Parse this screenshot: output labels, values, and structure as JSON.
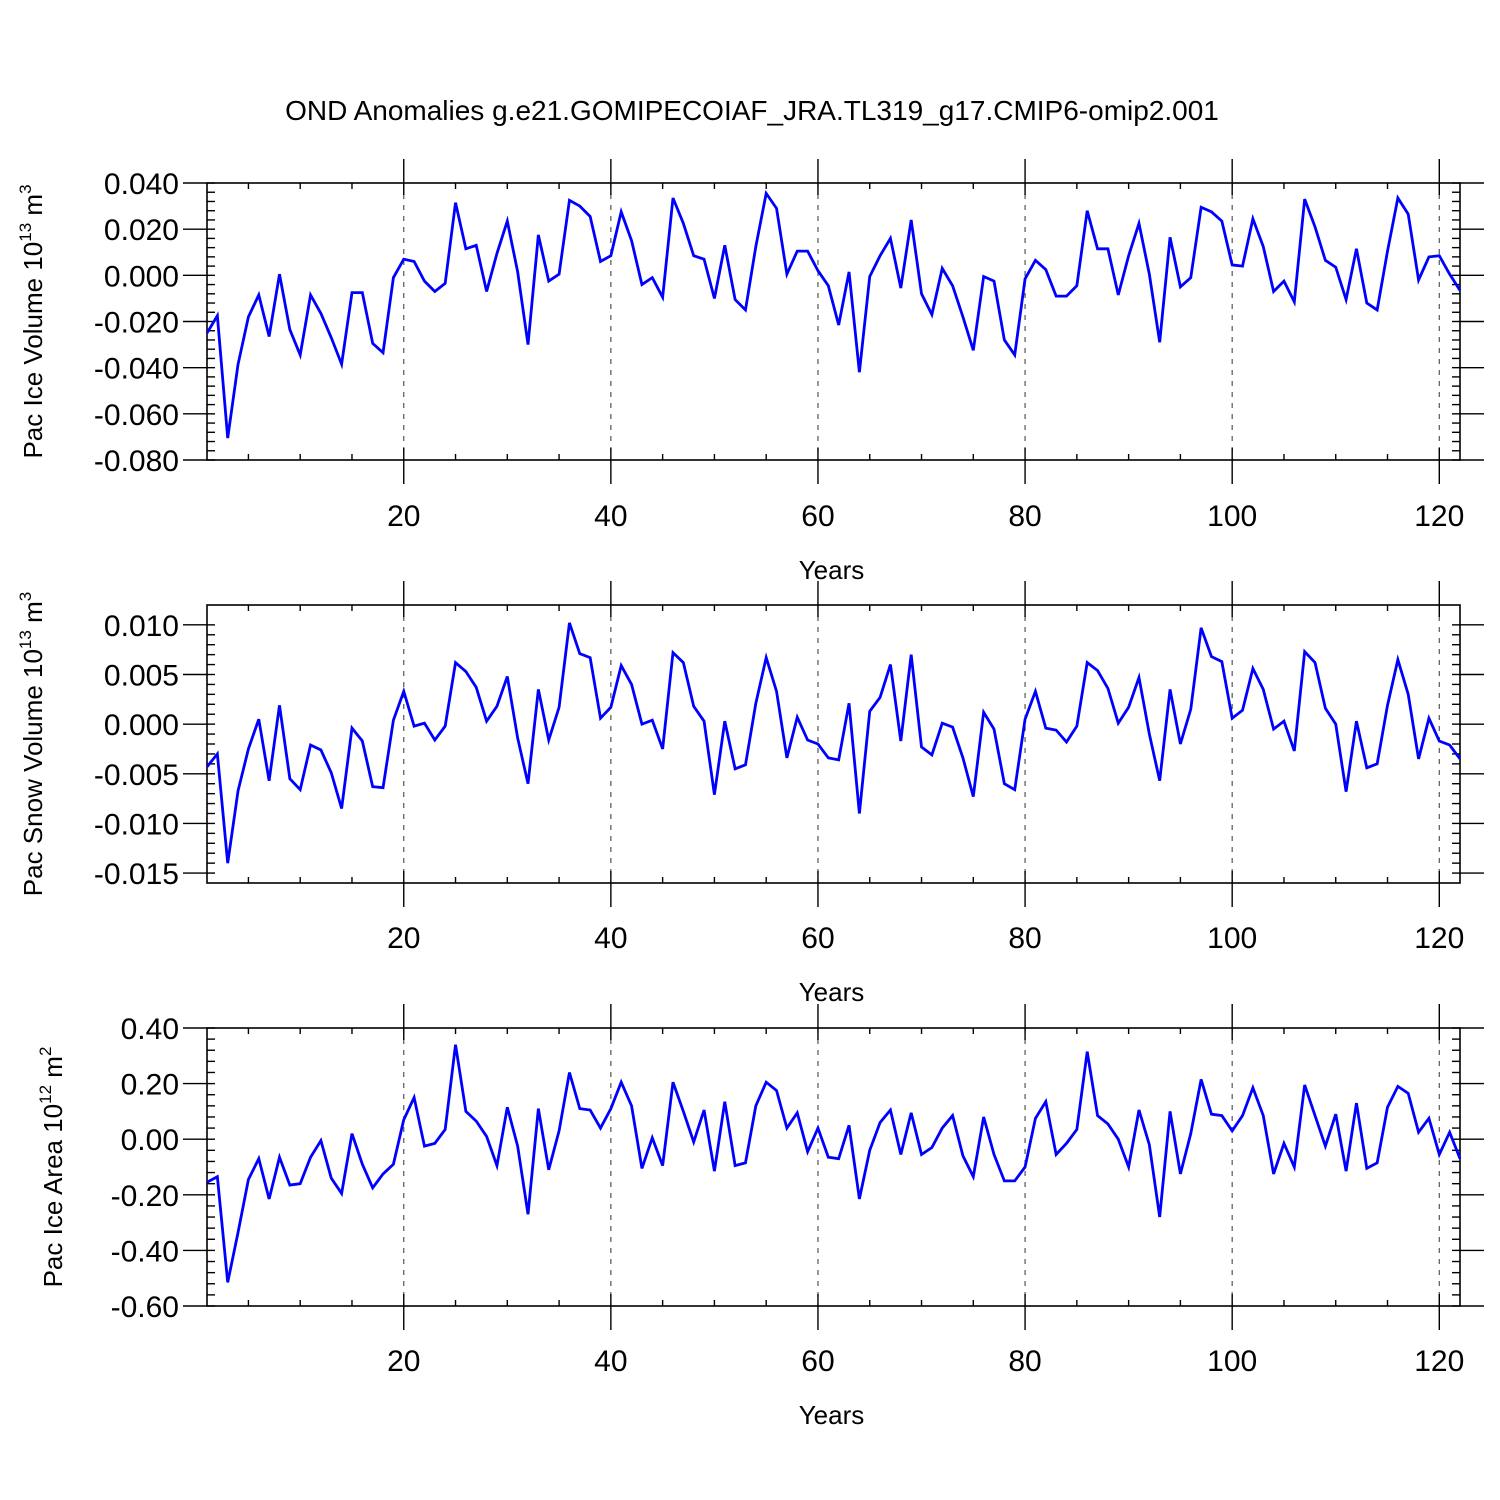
{
  "title": "OND Anomalies g.e21.GOMIPECOIAF_JRA.TL319_g17.CMIP6-omip2.001",
  "colors": {
    "line": "#0000ff",
    "frame": "#000000",
    "grid": "#555555",
    "background": "#ffffff"
  },
  "chart_data": [
    {
      "type": "line",
      "title": "",
      "xlabel": "Years",
      "ylabel_main": "Pac Ice Volume 10",
      "ylabel_exp": "13",
      "ylabel_unit": " m",
      "ylabel_unit_exp": "3",
      "xlim": [
        1,
        122
      ],
      "ylim": [
        -0.08,
        0.04
      ],
      "xticks": [
        20,
        40,
        60,
        80,
        100,
        120
      ],
      "xtick_labels": [
        "20",
        "40",
        "60",
        "80",
        "100",
        "120"
      ],
      "yticks": [
        -0.08,
        -0.06,
        -0.04,
        -0.02,
        0.0,
        0.02,
        0.04
      ],
      "ytick_labels": [
        "-0.080",
        "-0.060",
        "-0.040",
        "-0.020",
        "0.000",
        "0.020",
        "0.040"
      ],
      "grid": "dashed vertical at x ticks",
      "series": [
        {
          "name": "Pac Ice Volume",
          "values": [
            -0.025,
            -0.0175,
            -0.0705,
            -0.0385,
            -0.018,
            -0.0085,
            -0.0265,
            0.0005,
            -0.0235,
            -0.0345,
            -0.0085,
            -0.0165,
            -0.027,
            -0.0385,
            -0.0075,
            -0.0075,
            -0.0295,
            -0.0335,
            -0.001,
            0.007,
            0.006,
            -0.0025,
            -0.007,
            -0.0035,
            0.0315,
            0.0115,
            0.013,
            -0.007,
            0.0095,
            0.0235,
            0.0015,
            -0.03,
            0.0175,
            -0.0025,
            0.0005,
            0.0325,
            0.03,
            0.0255,
            0.006,
            0.0085,
            0.0275,
            0.015,
            -0.004,
            -0.001,
            -0.0095,
            0.0335,
            0.0225,
            0.0085,
            0.007,
            -0.01,
            0.013,
            -0.0105,
            -0.015,
            0.0125,
            0.0355,
            0.029,
            0.0005,
            0.0105,
            0.0105,
            0.002,
            -0.0045,
            -0.0215,
            0.0015,
            -0.042,
            -0.0005,
            0.0085,
            0.016,
            -0.0055,
            0.024,
            -0.008,
            -0.017,
            0.003,
            -0.0045,
            -0.018,
            -0.0325,
            -0.0005,
            -0.0025,
            -0.028,
            -0.0345,
            -0.0015,
            0.0065,
            0.0025,
            -0.009,
            -0.009,
            -0.0045,
            0.028,
            0.0115,
            0.0115,
            -0.0085,
            0.0085,
            0.0225,
            0.0005,
            -0.029,
            0.0165,
            -0.005,
            -0.001,
            0.0295,
            0.0275,
            0.0235,
            0.0045,
            0.004,
            0.0245,
            0.0125,
            -0.007,
            -0.0025,
            -0.0115,
            0.033,
            0.021,
            0.0065,
            0.0035,
            -0.0105,
            0.0115,
            -0.012,
            -0.015,
            0.0105,
            0.0335,
            0.0265,
            -0.002,
            0.008,
            0.0085,
            0.0005,
            -0.0065
          ]
        }
      ]
    },
    {
      "type": "line",
      "title": "",
      "xlabel": "Years",
      "ylabel_main": "Pac Snow Volume 10",
      "ylabel_exp": "13",
      "ylabel_unit": " m",
      "ylabel_unit_exp": "3",
      "xlim": [
        1,
        122
      ],
      "ylim": [
        -0.016,
        0.012
      ],
      "xticks": [
        20,
        40,
        60,
        80,
        100,
        120
      ],
      "xtick_labels": [
        "20",
        "40",
        "60",
        "80",
        "100",
        "120"
      ],
      "yticks": [
        -0.015,
        -0.01,
        -0.005,
        0.0,
        0.005,
        0.01
      ],
      "ytick_labels": [
        "-0.015",
        "-0.010",
        "-0.005",
        "0.000",
        "0.005",
        "0.010"
      ],
      "grid": "dashed vertical at x ticks",
      "series": [
        {
          "name": "Pac Snow Volume",
          "values": [
            -0.0043,
            -0.003,
            -0.014,
            -0.0067,
            -0.0025,
            0.0005,
            -0.0057,
            0.0019,
            -0.0055,
            -0.0066,
            -0.0021,
            -0.0026,
            -0.0049,
            -0.0085,
            -0.0004,
            -0.0017,
            -0.0063,
            -0.0064,
            0.0004,
            0.0033,
            -0.0002,
            0.0001,
            -0.0016,
            -0.0002,
            0.0062,
            0.0053,
            0.0037,
            0.0003,
            0.0018,
            0.0048,
            -0.0014,
            -0.006,
            0.0035,
            -0.0016,
            0.0017,
            0.0102,
            0.0071,
            0.0067,
            0.0006,
            0.0017,
            0.0059,
            0.004,
            0.0,
            0.0004,
            -0.0025,
            0.0072,
            0.0062,
            0.0018,
            0.0003,
            -0.0071,
            0.0003,
            -0.0045,
            -0.0041,
            0.0021,
            0.0067,
            0.0033,
            -0.0034,
            0.0007,
            -0.0016,
            -0.002,
            -0.0034,
            -0.0036,
            0.0021,
            -0.009,
            0.0013,
            0.0027,
            0.006,
            -0.0017,
            0.007,
            -0.0023,
            -0.0031,
            0.0001,
            -0.0003,
            -0.0034,
            -0.0073,
            0.0012,
            -0.0005,
            -0.006,
            -0.0066,
            0.0005,
            0.0033,
            -0.0004,
            -0.0006,
            -0.0018,
            -0.0002,
            0.0062,
            0.0054,
            0.0036,
            0.0001,
            0.0017,
            0.0047,
            -0.001,
            -0.0057,
            0.0035,
            -0.002,
            0.0015,
            0.0097,
            0.0068,
            0.0063,
            0.0006,
            0.0014,
            0.0056,
            0.0035,
            -0.0005,
            0.0003,
            -0.0027,
            0.0073,
            0.0062,
            0.0016,
            0.0,
            -0.0068,
            0.0003,
            -0.0044,
            -0.004,
            0.0019,
            0.0065,
            0.003,
            -0.0035,
            0.0006,
            -0.0017,
            -0.0021,
            -0.0035
          ]
        }
      ]
    },
    {
      "type": "line",
      "title": "",
      "xlabel": "Years",
      "ylabel_main": "Pac Ice Area 10",
      "ylabel_exp": "12",
      "ylabel_unit": " m",
      "ylabel_unit_exp": "2",
      "xlim": [
        1,
        122
      ],
      "ylim": [
        -0.6,
        0.4
      ],
      "xticks": [
        20,
        40,
        60,
        80,
        100,
        120
      ],
      "xtick_labels": [
        "20",
        "40",
        "60",
        "80",
        "100",
        "120"
      ],
      "yticks": [
        -0.6,
        -0.4,
        -0.2,
        0.0,
        0.2,
        0.4
      ],
      "ytick_labels": [
        "-0.60",
        "-0.40",
        "-0.20",
        "0.00",
        "0.20",
        "0.40"
      ],
      "grid": "dashed vertical at x ticks",
      "series": [
        {
          "name": "Pac Ice Area",
          "values": [
            -0.155,
            -0.135,
            -0.515,
            -0.335,
            -0.145,
            -0.07,
            -0.215,
            -0.065,
            -0.165,
            -0.16,
            -0.065,
            -0.005,
            -0.14,
            -0.195,
            0.02,
            -0.09,
            -0.175,
            -0.125,
            -0.09,
            0.07,
            0.15,
            -0.025,
            -0.015,
            0.035,
            0.34,
            0.1,
            0.065,
            0.01,
            -0.095,
            0.115,
            -0.025,
            -0.27,
            0.11,
            -0.11,
            0.03,
            0.24,
            0.11,
            0.105,
            0.04,
            0.11,
            0.205,
            0.12,
            -0.105,
            0.005,
            -0.095,
            0.205,
            0.1,
            -0.01,
            0.105,
            -0.115,
            0.135,
            -0.095,
            -0.085,
            0.12,
            0.205,
            0.175,
            0.04,
            0.095,
            -0.045,
            0.04,
            -0.065,
            -0.07,
            0.05,
            -0.215,
            -0.04,
            0.06,
            0.105,
            -0.055,
            0.095,
            -0.055,
            -0.03,
            0.04,
            0.085,
            -0.06,
            -0.135,
            0.08,
            -0.055,
            -0.15,
            -0.15,
            -0.1,
            0.075,
            0.135,
            -0.055,
            -0.015,
            0.035,
            0.315,
            0.085,
            0.055,
            0.0,
            -0.1,
            0.105,
            -0.02,
            -0.28,
            0.1,
            -0.125,
            0.02,
            0.215,
            0.09,
            0.085,
            0.03,
            0.085,
            0.185,
            0.085,
            -0.125,
            -0.015,
            -0.1,
            0.195,
            0.085,
            -0.025,
            0.09,
            -0.115,
            0.13,
            -0.105,
            -0.085,
            0.115,
            0.19,
            0.165,
            0.025,
            0.075,
            -0.055,
            0.025,
            -0.07
          ]
        }
      ]
    }
  ]
}
